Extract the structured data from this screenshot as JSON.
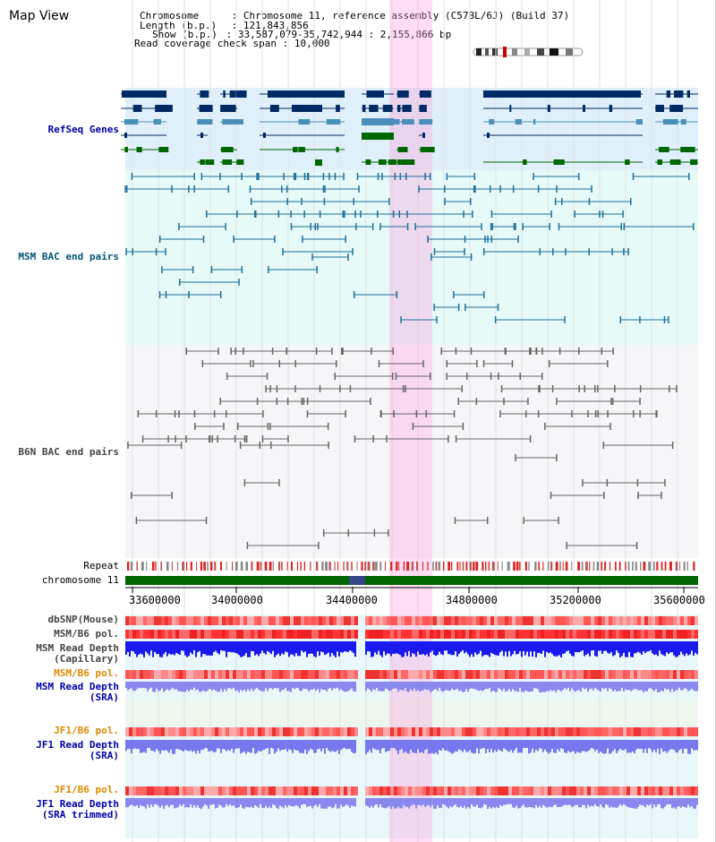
{
  "title": "Map View",
  "info": {
    "chromosome_key": "Chromosome",
    "chromosome_val": ": Chromosome 11, reference assembly (C57BL/6J) (Build 37)",
    "length_key": "Length (b.p.)",
    "length_val": ": 121,843,856",
    "show_key": "Show (b.p.)",
    "show_val": ": 33,587,079-35,742,944 : 2,155,866 bp",
    "coverage_key": "Read coverage check span",
    "coverage_val": ": 10,000"
  },
  "tracks": {
    "refseq": "RefSeq Genes",
    "msm_bac": "MSM BAC end pairs",
    "b6n_bac": "B6N BAC end pairs",
    "repeat": "Repeat",
    "chromosome": "chromosome 11"
  },
  "axis": {
    "ticks": [
      "33600000",
      "34000000",
      "34400000",
      "34800000",
      "35200000",
      "35600000"
    ]
  },
  "data_tracks": {
    "dbsnp": "dbSNP(Mouse)",
    "msm_b6_pol1": "MSM/B6 pol.",
    "msm_depth_cap_1": "MSM Read Depth",
    "msm_depth_cap_2": "(Capillary)",
    "msm_b6_pol2": "MSM/B6 pol.",
    "msm_depth_sra_1": "MSM Read Depth",
    "msm_depth_sra_2": "(SRA)",
    "jf1_b6_pol1": "JF1/B6 pol.",
    "jf1_depth_sra_1": "JF1 Read Depth",
    "jf1_depth_sra_2": "(SRA)",
    "jf1_b6_pol2": "JF1/B6 pol.",
    "jf1_depth_trim_1": "JF1 Read Depth",
    "jf1_depth_trim_2": "(SRA trimmed)"
  },
  "colors": {
    "refseq_label": "#0000aa",
    "msm_label": "#005577",
    "b6n_label": "#444444",
    "pol_label_orange": "#dd8800",
    "depth_label_blue": "#0000aa",
    "highlight": "#ff99dd",
    "chromosome_bar": "#006600"
  }
}
